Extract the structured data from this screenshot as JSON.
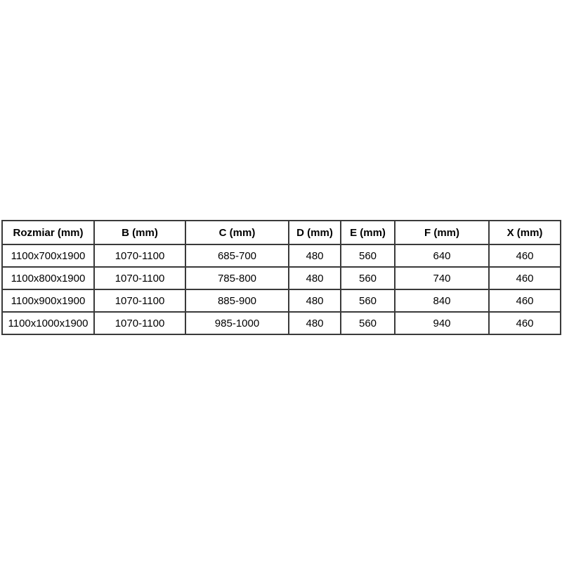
{
  "colors": {
    "page_background": "#ffffff",
    "table_background": "#ffffff",
    "border": "#3a3a3a",
    "outer_border": "#2a2a2a",
    "text": "#000000"
  },
  "chart_data": {
    "type": "table",
    "title": "",
    "columns": [
      "Rozmiar (mm)",
      "B (mm)",
      "C (mm)",
      "D (mm)",
      "E (mm)",
      "F (mm)",
      "X (mm)"
    ],
    "rows": [
      [
        "1100x700x1900",
        "1070-1100",
        "685-700",
        "480",
        "560",
        "640",
        "460"
      ],
      [
        "1100x800x1900",
        "1070-1100",
        "785-800",
        "480",
        "560",
        "740",
        "460"
      ],
      [
        "1100x900x1900",
        "1070-1100",
        "885-900",
        "480",
        "560",
        "840",
        "460"
      ],
      [
        "1100x1000x1900",
        "1070-1100",
        "985-1000",
        "480",
        "560",
        "940",
        "460"
      ]
    ],
    "layout": {
      "header_bold": true,
      "cell_alignment": "center",
      "grid": "all-borders"
    }
  }
}
